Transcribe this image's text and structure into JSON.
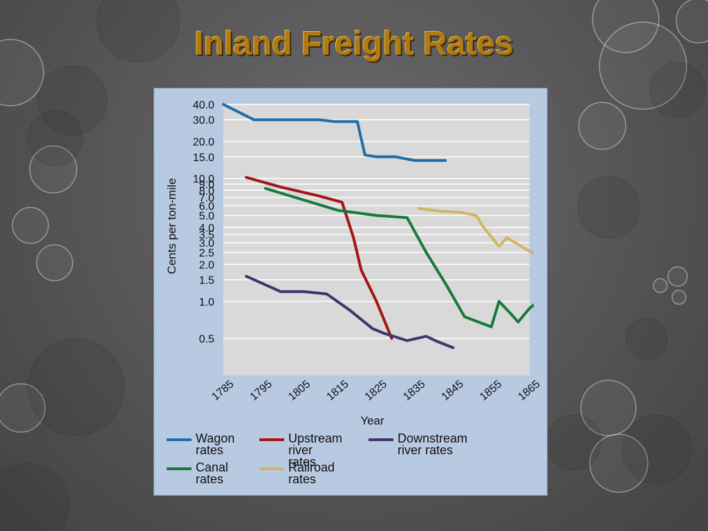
{
  "slide": {
    "title": "Inland Freight Rates"
  },
  "chart_data": {
    "type": "line",
    "title": "",
    "xlabel": "Year",
    "ylabel": "Cents per ton-mile",
    "y_scale": "log",
    "xlim": [
      1785,
      1865
    ],
    "x_ticks": [
      "1785",
      "1795",
      "1805",
      "1815",
      "1825",
      "1835",
      "1845",
      "1855",
      "1865"
    ],
    "y_ticks": [
      "40.0",
      "30.0",
      "20.0",
      "15.0",
      "10.0",
      "9.0",
      "8.0",
      "7.0",
      "6.0",
      "5.0",
      "4.0",
      "3.5",
      "3.0",
      "2.5",
      "2.0",
      "1.5",
      "1.0",
      "0.5"
    ],
    "grid": true,
    "legend_position": "bottom",
    "series": [
      {
        "name": "Wagon rates",
        "color": "#1f6ea8",
        "points": [
          [
            1785,
            40
          ],
          [
            1793,
            30
          ],
          [
            1810,
            30
          ],
          [
            1814,
            29
          ],
          [
            1820,
            29
          ],
          [
            1822,
            15.5
          ],
          [
            1825,
            15
          ],
          [
            1830,
            15
          ],
          [
            1835,
            14
          ],
          [
            1843,
            14
          ]
        ]
      },
      {
        "name": "Upstream river rates",
        "color": "#a31515",
        "points": [
          [
            1791,
            10.2
          ],
          [
            1800,
            8.5
          ],
          [
            1810,
            7.2
          ],
          [
            1816,
            6.4
          ],
          [
            1819,
            3.3
          ],
          [
            1821,
            1.8
          ],
          [
            1825,
            1.0
          ],
          [
            1829,
            0.5
          ]
        ]
      },
      {
        "name": "Downstream river rates",
        "color": "#3e3568",
        "points": [
          [
            1791,
            1.6
          ],
          [
            1800,
            1.2
          ],
          [
            1806,
            1.2
          ],
          [
            1812,
            1.15
          ],
          [
            1818,
            0.85
          ],
          [
            1824,
            0.6
          ],
          [
            1827,
            0.55
          ],
          [
            1833,
            0.48
          ],
          [
            1838,
            0.52
          ],
          [
            1841,
            0.47
          ],
          [
            1845,
            0.42
          ]
        ]
      },
      {
        "name": "Canal rates",
        "color": "#177a3a",
        "points": [
          [
            1796,
            8.3
          ],
          [
            1815,
            5.5
          ],
          [
            1825,
            5.0
          ],
          [
            1833,
            4.8
          ],
          [
            1838,
            2.5
          ],
          [
            1843,
            1.4
          ],
          [
            1848,
            0.75
          ],
          [
            1855,
            0.62
          ],
          [
            1857,
            1.0
          ],
          [
            1860,
            0.8
          ],
          [
            1862,
            0.68
          ],
          [
            1865,
            0.88
          ],
          [
            1869,
            1.1
          ]
        ]
      },
      {
        "name": "Railroad rates",
        "color": "#d2b464",
        "points": [
          [
            1836,
            5.7
          ],
          [
            1842,
            5.4
          ],
          [
            1847,
            5.3
          ],
          [
            1851,
            5.0
          ],
          [
            1853,
            4.0
          ],
          [
            1857,
            2.8
          ],
          [
            1859,
            3.3
          ],
          [
            1865,
            2.55
          ],
          [
            1867,
            2.4
          ],
          [
            1868,
            2.9
          ]
        ]
      }
    ]
  },
  "legend": [
    {
      "key": "wagon",
      "label": "Wagon\nrates",
      "color": "#1f6ea8"
    },
    {
      "key": "upstream",
      "label": "Upstream\nriver rates",
      "color": "#a31515"
    },
    {
      "key": "downstream",
      "label": "Downstream\nriver rates",
      "color": "#3e3568"
    },
    {
      "key": "canal",
      "label": "Canal\nrates",
      "color": "#177a3a"
    },
    {
      "key": "railroad",
      "label": "Railroad\nrates",
      "color": "#d2b464"
    }
  ]
}
